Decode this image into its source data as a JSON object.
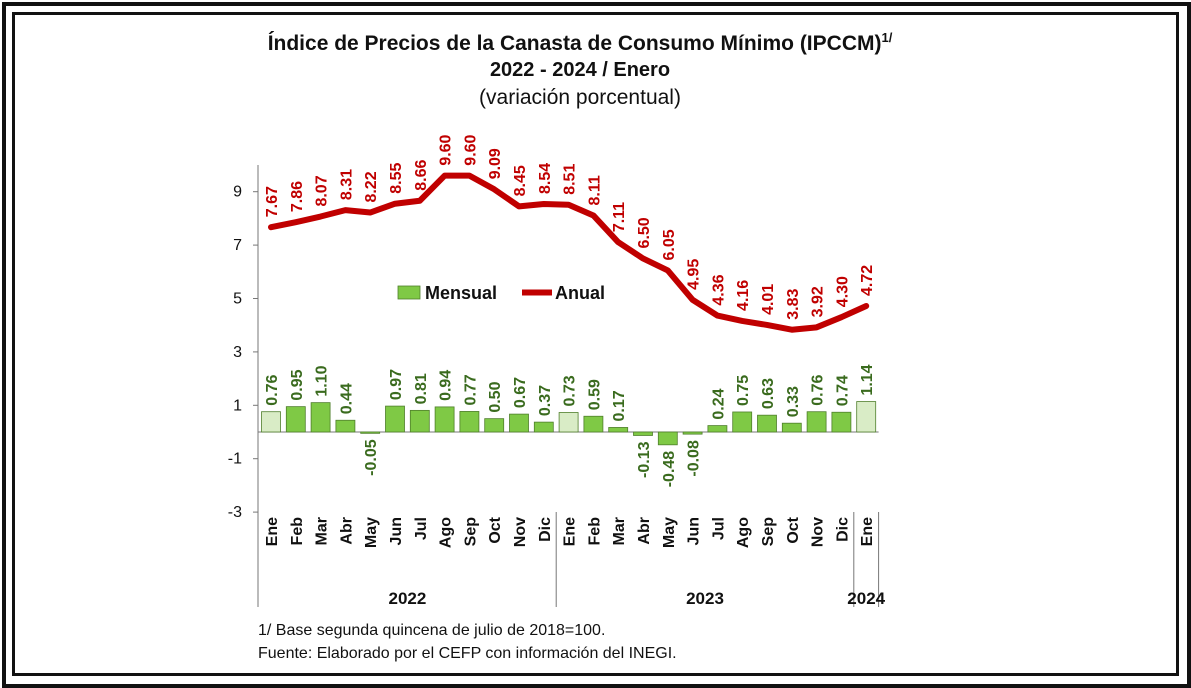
{
  "title": {
    "main": "Índice de Precios de la Canasta de Consumo Mínimo (IPCCM)",
    "superscript": "1/",
    "period": "2022 - 2024 / Enero",
    "subtitle": "(variación porcentual)"
  },
  "footnotes": {
    "base": "1/ Base segunda quincena de julio de 2018=100.",
    "source": "Fuente: Elaborado por el CEFP con información del INEGI."
  },
  "colors": {
    "anual": "#c00000",
    "mensual_fill": "#7fc945",
    "mensual_highlight": "#d9ecc6",
    "mensual_label": "#3a6b1e",
    "border": "#111111"
  },
  "chart_data": {
    "type": "bar+line",
    "categories": [
      "Ene",
      "Feb",
      "Mar",
      "Abr",
      "May",
      "Jun",
      "Jul",
      "Ago",
      "Sep",
      "Oct",
      "Nov",
      "Dic",
      "Ene",
      "Feb",
      "Mar",
      "Abr",
      "May",
      "Jun",
      "Jul",
      "Ago",
      "Sep",
      "Oct",
      "Nov",
      "Dic",
      "Ene"
    ],
    "year_groups": [
      {
        "label": "2022",
        "start": 0,
        "end": 11
      },
      {
        "label": "2023",
        "start": 12,
        "end": 23
      },
      {
        "label": "2024",
        "start": 24,
        "end": 24
      }
    ],
    "series": [
      {
        "name": "Mensual",
        "type": "bar",
        "values": [
          0.76,
          0.95,
          1.1,
          0.44,
          -0.05,
          0.97,
          0.81,
          0.94,
          0.77,
          0.5,
          0.67,
          0.37,
          0.73,
          0.59,
          0.17,
          -0.13,
          -0.48,
          -0.08,
          0.24,
          0.75,
          0.63,
          0.33,
          0.76,
          0.74,
          1.14
        ],
        "labels": [
          "0.76",
          "0.95",
          "1.10",
          "0.44",
          "-0.05",
          "0.97",
          "0.81",
          "0.94",
          "0.77",
          "0.50",
          "0.67",
          "0.37",
          "0.73",
          "0.59",
          "0.17",
          "-0.13",
          "-0.48",
          "-0.08",
          "0.24",
          "0.75",
          "0.63",
          "0.33",
          "0.76",
          "0.74",
          "1.14"
        ],
        "highlighted_indices": [
          0,
          12,
          24
        ]
      },
      {
        "name": "Anual",
        "type": "line",
        "values": [
          7.67,
          7.86,
          8.07,
          8.31,
          8.22,
          8.55,
          8.66,
          9.6,
          9.6,
          9.09,
          8.45,
          8.54,
          8.51,
          8.11,
          7.11,
          6.5,
          6.05,
          4.95,
          4.36,
          4.16,
          4.01,
          3.83,
          3.92,
          4.3,
          4.72
        ],
        "labels": [
          "7.67",
          "7.86",
          "8.07",
          "8.31",
          "8.22",
          "8.55",
          "8.66",
          "9.60",
          "9.60",
          "9.09",
          "8.45",
          "8.54",
          "8.51",
          "8.11",
          "7.11",
          "6.50",
          "6.05",
          "4.95",
          "4.36",
          "4.16",
          "4.01",
          "3.83",
          "3.92",
          "4.30",
          "4.72"
        ]
      }
    ],
    "y_ticks": [
      "-3",
      "-1",
      "1",
      "3",
      "5",
      "7",
      "9"
    ],
    "ylim": [
      -3,
      10
    ],
    "legend": {
      "position": "center",
      "items": [
        "Mensual",
        "Anual"
      ]
    },
    "grid": false
  }
}
